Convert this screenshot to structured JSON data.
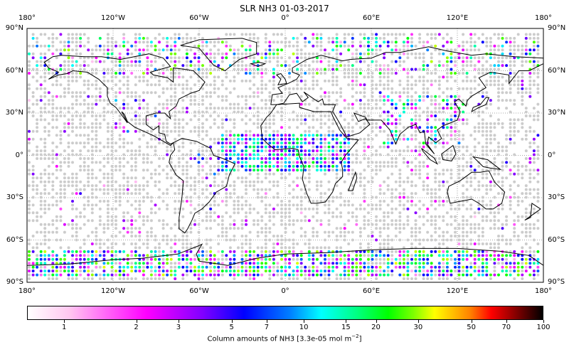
{
  "chart_data": {
    "type": "map",
    "title": "SLR NH3 01-03-2017",
    "projection": "equirectangular",
    "lon_range": [
      -180,
      180
    ],
    "lat_range": [
      -90,
      90
    ],
    "grid": true,
    "lon_tick_labels": [
      "180°",
      "120°W",
      "60°W",
      "0°",
      "60°E",
      "120°E",
      "180°"
    ],
    "lon_ticks": [
      -180,
      -120,
      -60,
      0,
      60,
      120,
      180
    ],
    "lat_tick_labels": [
      "90°N",
      "60°N",
      "30°N",
      "0°",
      "30°S",
      "60°S",
      "90°S"
    ],
    "lat_ticks": [
      90,
      60,
      30,
      0,
      -30,
      -60,
      -90
    ],
    "colorbar": {
      "label": "Column amounts of NH3 [3.3e-05 mol m",
      "label_sup": "−2",
      "label_end": "]",
      "scale": "log",
      "range": [
        0.7,
        100
      ],
      "ticks": [
        1,
        2,
        3,
        5,
        7,
        10,
        15,
        20,
        30,
        50,
        70,
        100
      ],
      "tick_labels": [
        "1",
        "2",
        "3",
        "5",
        "7",
        "10",
        "15",
        "20",
        "30",
        "50",
        "70",
        "100"
      ],
      "colormap": [
        "#ffffff",
        "#ff00ff",
        "#0000ff",
        "#00ffff",
        "#00ff00",
        "#ffff00",
        "#ff0000",
        "#000000"
      ]
    },
    "no_data_color": "#cccccc"
  }
}
